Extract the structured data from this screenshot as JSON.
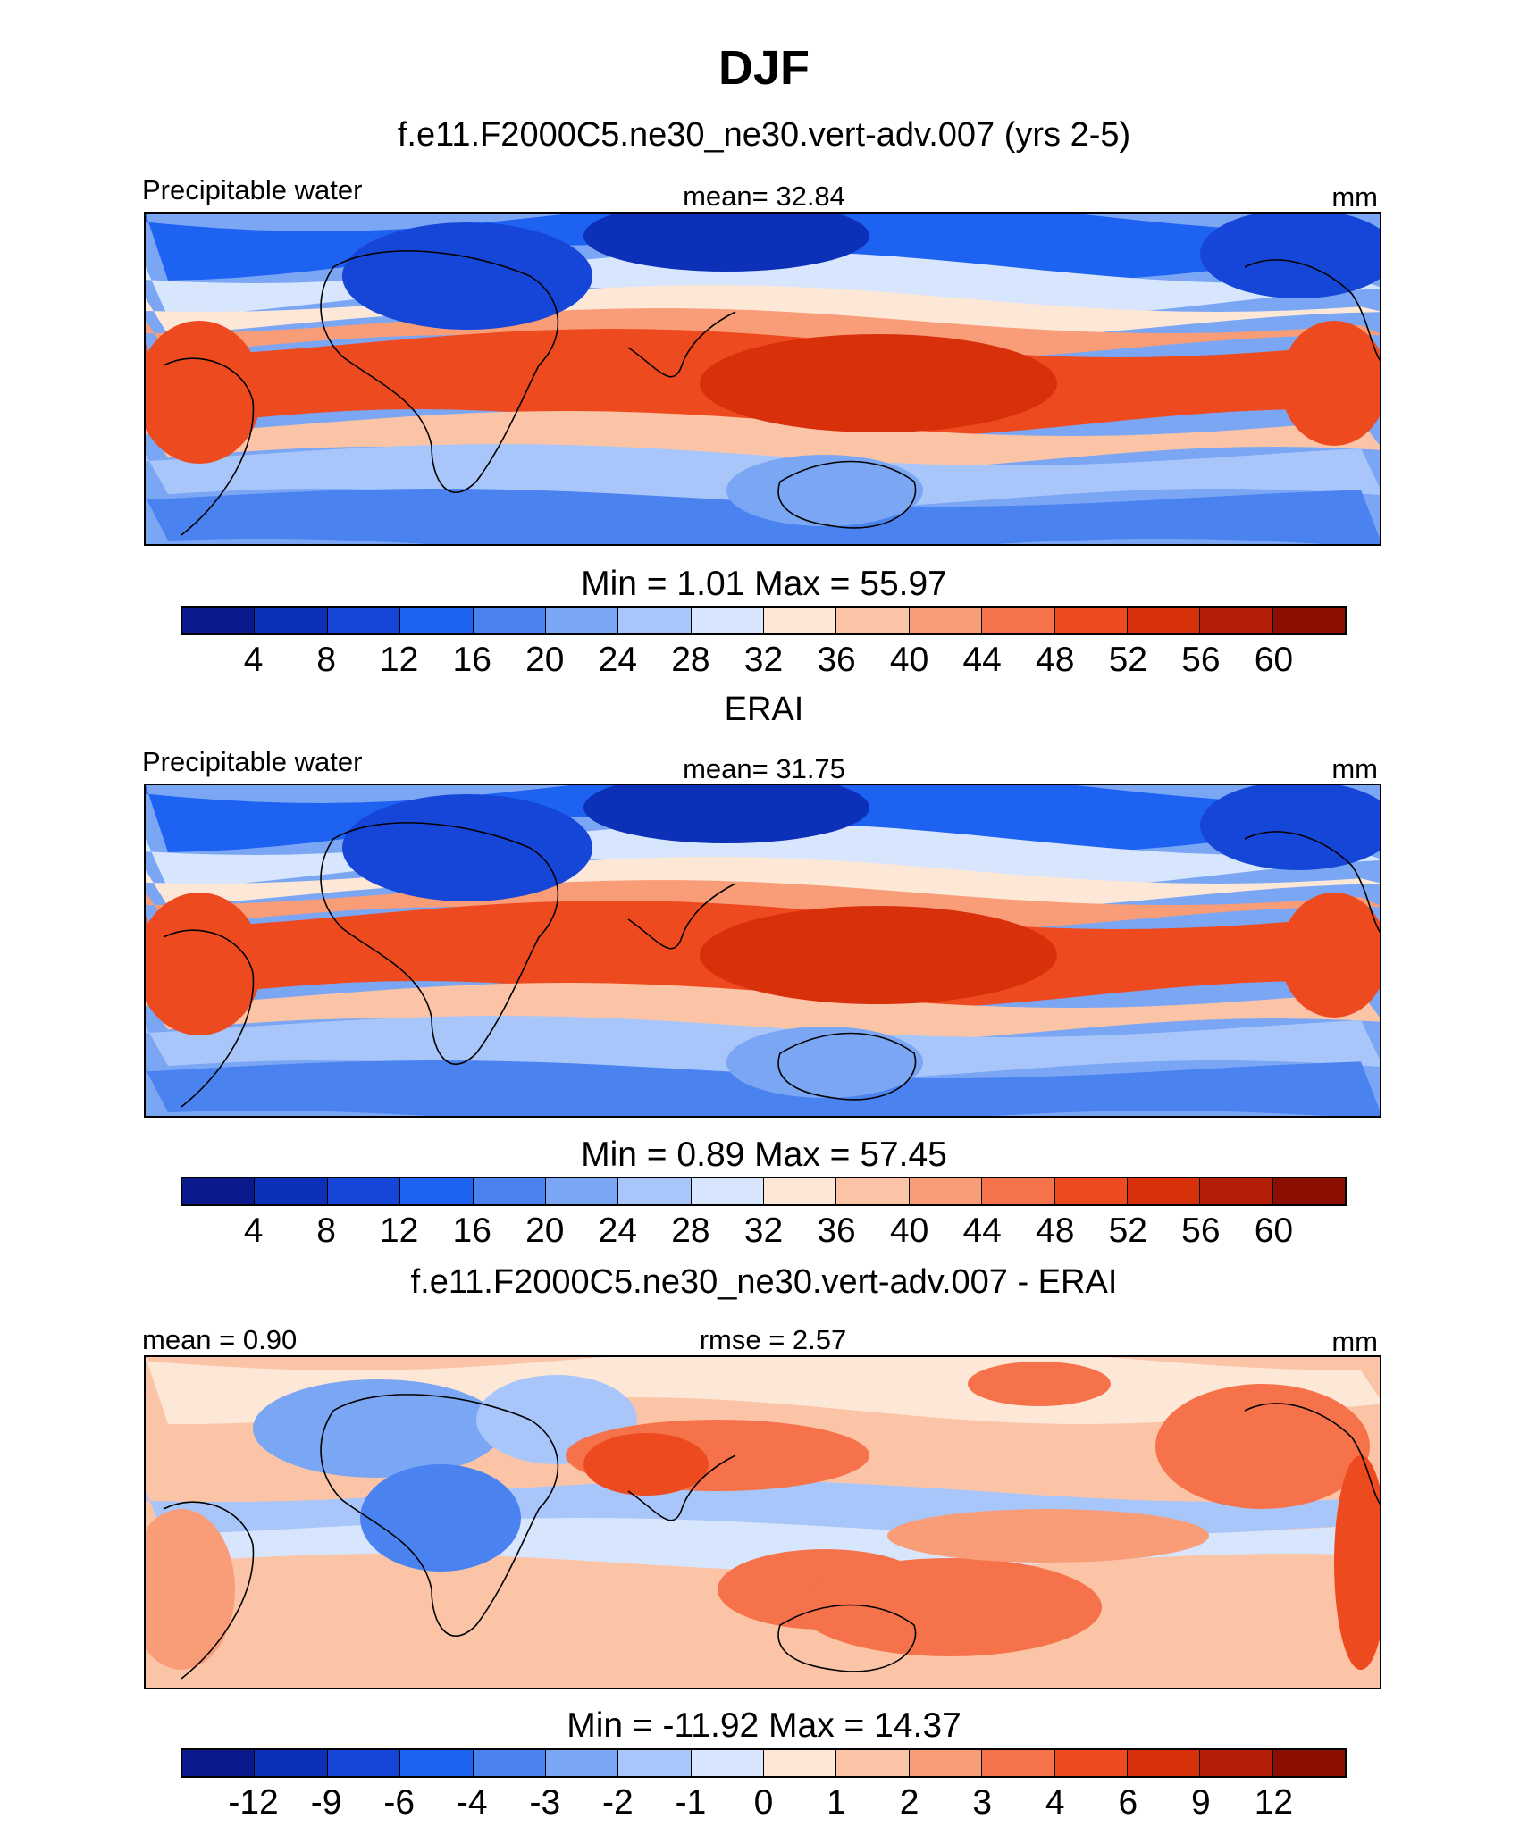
{
  "title": "DJF",
  "palette": {
    "levels": [
      "#0a1a8c",
      "#0d30b8",
      "#1646d8",
      "#1e62f2",
      "#4a82f0",
      "#7aa6f4",
      "#a9c6fa",
      "#d7e6fc",
      "#fde7d6",
      "#fcc4a6",
      "#f99c78",
      "#f6724a",
      "#ee4a20",
      "#d9300c",
      "#b41e06",
      "#8a0e02"
    ]
  },
  "panels": [
    {
      "run_title": "f.e11.F2000C5.ne30_ne30.vert-adv.007 (yrs 2-5)",
      "left_label": "Precipitable water",
      "center_label": "mean=  32.84",
      "right_label": "mm",
      "minmax": "Min =    1.01 Max =  55.97",
      "colorbar_ticks": [
        "4",
        "8",
        "12",
        "16",
        "20",
        "24",
        "28",
        "32",
        "36",
        "40",
        "44",
        "48",
        "52",
        "56",
        "60"
      ],
      "kind": "model"
    },
    {
      "run_title": "ERAI",
      "left_label": "Precipitable water",
      "center_label": "mean=  31.75",
      "right_label": "mm",
      "minmax": "Min =    0.89 Max =  57.45",
      "colorbar_ticks": [
        "4",
        "8",
        "12",
        "16",
        "20",
        "24",
        "28",
        "32",
        "36",
        "40",
        "44",
        "48",
        "52",
        "56",
        "60"
      ],
      "kind": "obs"
    },
    {
      "run_title": "f.e11.F2000C5.ne30_ne30.vert-adv.007 - ERAI",
      "left_label": "mean =    0.90",
      "center_label": "rmse =    2.57",
      "right_label": "mm",
      "minmax": "Min = -11.92 Max =  14.37",
      "colorbar_ticks": [
        "-12",
        "-9",
        "-6",
        "-4",
        "-3",
        "-2",
        "-1",
        "0",
        "1",
        "2",
        "3",
        "4",
        "6",
        "9",
        "12"
      ],
      "kind": "diff"
    }
  ]
}
